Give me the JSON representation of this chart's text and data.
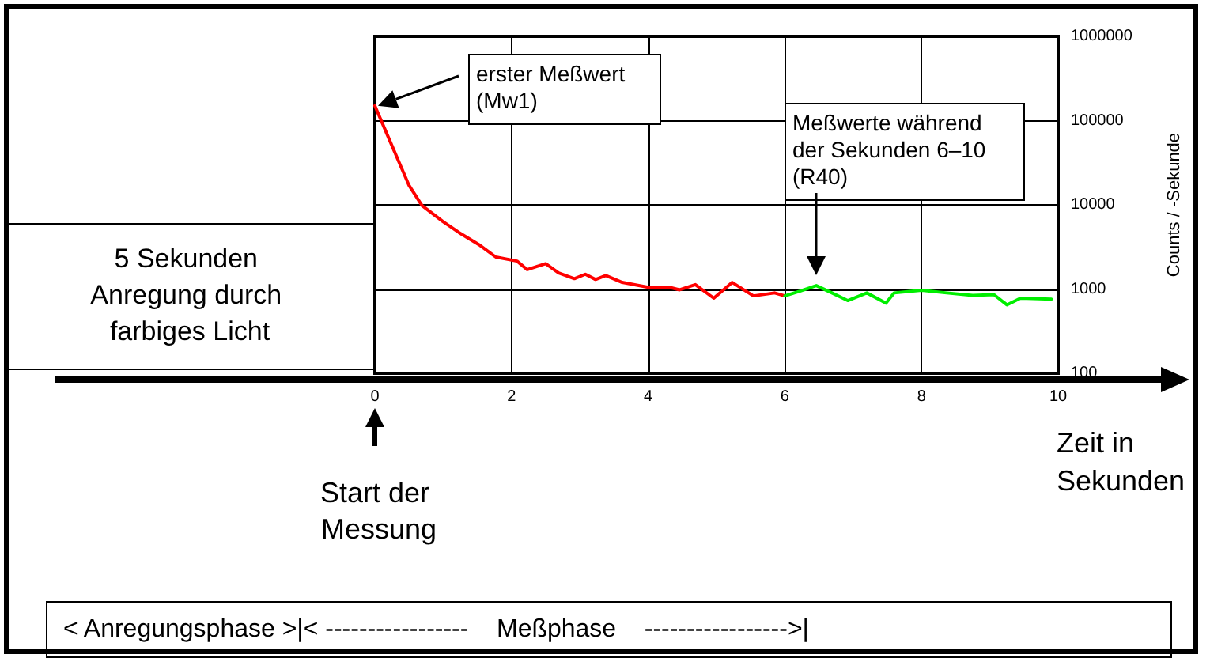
{
  "chart_data": {
    "type": "line",
    "xlabel": "Zeit in Sekunden",
    "ylabel": "Counts / -Sekunde",
    "xlim": [
      0,
      10
    ],
    "xticks": [
      0,
      2,
      4,
      6,
      8,
      10
    ],
    "ylim": [
      100,
      1000000
    ],
    "yticks": [
      100,
      1000,
      10000,
      100000,
      1000000
    ],
    "log": "y",
    "grid": true,
    "marker": "none",
    "line_style": "solid",
    "series": [
      {
        "color": "#ff0000",
        "x": [
          0,
          0.23,
          0.5,
          0.69,
          1.0,
          1.23,
          1.54,
          1.77,
          2.08,
          2.23,
          2.5,
          2.69,
          2.92,
          3.08,
          3.23,
          3.38,
          3.62,
          4.0,
          4.31,
          4.46,
          4.69,
          4.96,
          5.23,
          5.54,
          5.85,
          6.0
        ],
        "values": [
          150000,
          55000,
          17000,
          9800,
          6300,
          4700,
          3300,
          2400,
          2150,
          1700,
          2000,
          1550,
          1330,
          1500,
          1300,
          1450,
          1200,
          1050,
          1050,
          980,
          1130,
          780,
          1200,
          830,
          900,
          830
        ]
      },
      {
        "color": "#00ee00",
        "x": [
          6.0,
          6.23,
          6.46,
          6.69,
          6.92,
          7.2,
          7.48,
          7.6,
          8.0,
          8.37,
          8.75,
          9.06,
          9.25,
          9.45,
          9.9
        ],
        "values": [
          830,
          950,
          1100,
          900,
          730,
          900,
          680,
          900,
          970,
          900,
          840,
          860,
          650,
          780,
          760
        ]
      }
    ],
    "annotations": [
      "erster Meßwert (Mw1)",
      "Meßwerte während der Sekunden 6–10 (R40)",
      "5 Sekunden Anregung durch farbiges Licht",
      "Start der Messung",
      "< Anregungsphase >|< -----------------    Meßphase    ----------------->|"
    ]
  }
}
